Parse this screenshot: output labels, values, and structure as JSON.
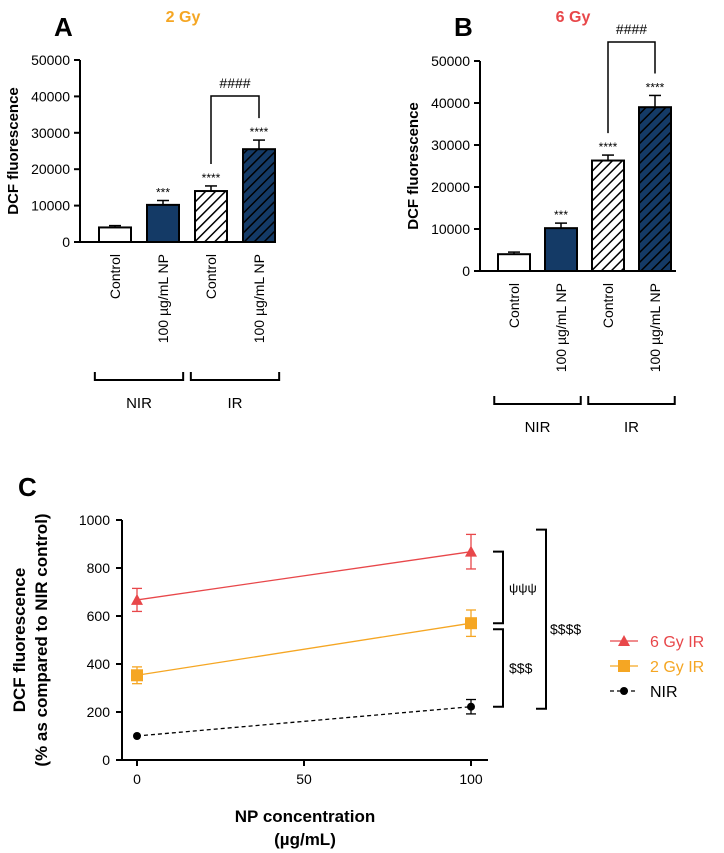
{
  "chart_data": [
    {
      "panel": "A",
      "type": "bar",
      "title": "2 Gy",
      "title_color": "#f5a623",
      "ylabel": "DCF fluorescence",
      "xlabel": "",
      "ylim": [
        0,
        50000
      ],
      "yticks": [
        0,
        10000,
        20000,
        30000,
        40000,
        50000
      ],
      "ytick_labels": [
        "0",
        "10000",
        "20000",
        "30000",
        "40000",
        "50000"
      ],
      "categories": [
        "Control",
        "100 µg/mL NP",
        "Control",
        "100 µg/mL NP"
      ],
      "values": [
        4000,
        10200,
        14000,
        25500
      ],
      "errors": [
        500,
        1200,
        1400,
        2500
      ],
      "annotations": [
        "",
        "***",
        "****",
        "****"
      ],
      "bar_styles": [
        "empty",
        "solid",
        "hatched-empty",
        "hatched-solid"
      ],
      "groups": [
        {
          "label": "NIR",
          "start": 0,
          "end": 1
        },
        {
          "label": "IR",
          "start": 2,
          "end": 3
        }
      ],
      "comparison": {
        "from": 2,
        "to": 3,
        "label": "####"
      }
    },
    {
      "panel": "B",
      "type": "bar",
      "title": "6 Gy",
      "title_color": "#e8474a",
      "ylabel": "DCF fluorescence",
      "xlabel": "",
      "ylim": [
        0,
        50000
      ],
      "yticks": [
        0,
        10000,
        20000,
        30000,
        40000,
        50000
      ],
      "ytick_labels": [
        "0",
        "10000",
        "20000",
        "30000",
        "40000",
        "50000"
      ],
      "categories": [
        "Control",
        "100 µg/mL NP",
        "Control",
        "100 µg/mL NP"
      ],
      "values": [
        4000,
        10200,
        26300,
        39000
      ],
      "errors": [
        500,
        1200,
        1300,
        2800
      ],
      "annotations": [
        "",
        "***",
        "****",
        "****"
      ],
      "bar_styles": [
        "empty",
        "solid",
        "hatched-empty",
        "hatched-solid"
      ],
      "groups": [
        {
          "label": "NIR",
          "start": 0,
          "end": 1
        },
        {
          "label": "IR",
          "start": 2,
          "end": 3
        }
      ],
      "comparison": {
        "from": 2,
        "to": 3,
        "label": "####"
      }
    },
    {
      "panel": "C",
      "type": "line",
      "title": "",
      "xlabel": "NP concentration",
      "xlabel_line2": "(µg/mL)",
      "ylabel": "DCF fluorescence",
      "ylabel_line2": "(% as compared to NIR control)",
      "xlim": [
        0,
        100
      ],
      "ylim": [
        0,
        1000
      ],
      "xticks": [
        0,
        50,
        100
      ],
      "xtick_labels": [
        "0",
        "50",
        "100"
      ],
      "yticks": [
        0,
        200,
        400,
        600,
        800,
        1000
      ],
      "ytick_labels": [
        "0",
        "200",
        "400",
        "600",
        "800",
        "1000"
      ],
      "x": [
        0,
        100
      ],
      "series": [
        {
          "name": "6 Gy IR",
          "values": [
            667,
            868
          ],
          "errors": [
            48,
            72
          ],
          "color": "#e8474a",
          "marker": "triangle",
          "dashed": false
        },
        {
          "name": "2 Gy IR",
          "values": [
            353,
            570
          ],
          "errors": [
            35,
            55
          ],
          "color": "#f5a623",
          "marker": "square",
          "dashed": false
        },
        {
          "name": "NIR",
          "values": [
            100,
            222
          ],
          "errors": [
            0,
            30
          ],
          "color": "#000000",
          "marker": "circle",
          "dashed": true
        }
      ],
      "brackets": [
        "ψψψ",
        "$$$",
        "$$$$"
      ],
      "legend_position": "right"
    }
  ],
  "panel_letters": {
    "a": "A",
    "b": "B",
    "c": "C"
  }
}
